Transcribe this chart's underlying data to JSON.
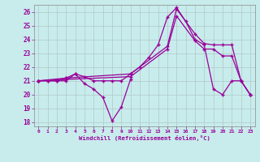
{
  "background_color": "#c8ecec",
  "line_color": "#990099",
  "grid_color": "#b0c8c8",
  "xlabel": "Windchill (Refroidissement éolien,°C)",
  "xlim": [
    -0.5,
    23.5
  ],
  "ylim": [
    17.7,
    26.5
  ],
  "yticks": [
    18,
    19,
    20,
    21,
    22,
    23,
    24,
    25,
    26
  ],
  "xticks": [
    0,
    1,
    2,
    3,
    4,
    5,
    6,
    7,
    8,
    9,
    10,
    11,
    12,
    13,
    14,
    15,
    16,
    17,
    18,
    19,
    20,
    21,
    22,
    23
  ],
  "lines": [
    {
      "x": [
        0,
        1,
        2,
        3,
        4,
        5,
        6,
        7,
        8,
        9,
        10
      ],
      "y": [
        21,
        21,
        21,
        21,
        21.5,
        20.8,
        20.4,
        19.8,
        18.1,
        19.1,
        21.1
      ]
    },
    {
      "x": [
        0,
        1,
        2,
        3,
        4,
        5,
        6,
        7,
        8,
        9,
        10,
        11,
        12,
        13,
        14,
        15,
        16,
        17,
        18,
        19,
        20,
        21,
        22,
        23
      ],
      "y": [
        21,
        21,
        21,
        21.2,
        21.5,
        21.3,
        21,
        21,
        21,
        21,
        21.5,
        22.0,
        22.7,
        23.6,
        25.6,
        26.3,
        25.3,
        24.0,
        23.6,
        20.4,
        20.0,
        21.0,
        21.0,
        20.0
      ]
    },
    {
      "x": [
        0,
        3,
        10,
        14,
        15,
        17,
        18,
        19,
        20,
        21,
        22,
        23
      ],
      "y": [
        21,
        21.2,
        21.5,
        23.5,
        26.2,
        24.4,
        23.7,
        23.6,
        23.6,
        23.6,
        21.0,
        20.0
      ]
    },
    {
      "x": [
        0,
        3,
        10,
        14,
        15,
        17,
        18,
        19,
        20,
        21,
        22,
        23
      ],
      "y": [
        21,
        21.1,
        21.3,
        23.3,
        25.7,
        23.9,
        23.3,
        23.3,
        22.8,
        22.8,
        21.0,
        20.0
      ]
    }
  ]
}
